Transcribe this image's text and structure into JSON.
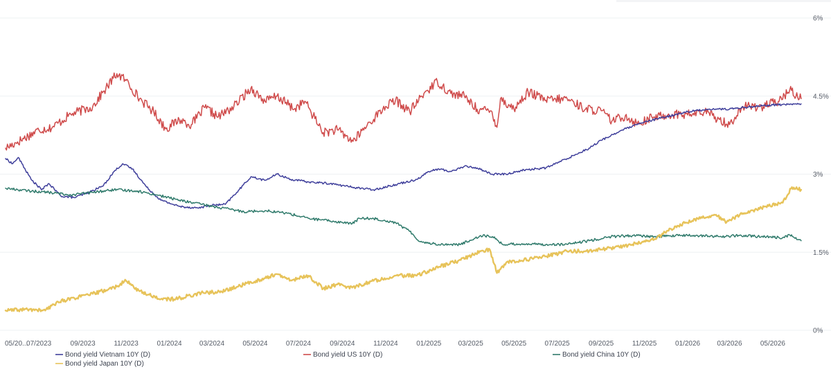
{
  "chart_data": {
    "type": "line",
    "title": "",
    "xlabel": "",
    "ylabel": "",
    "ylim": [
      0,
      6
    ],
    "y_axis_position": "right",
    "y_ticks": [
      "0%",
      "1.5%",
      "3%",
      "4.5%",
      "6%"
    ],
    "y_tick_values": [
      0,
      1.5,
      3,
      4.5,
      6
    ],
    "x_range": [
      "2023-05-15",
      "2026-06-15"
    ],
    "x_ticks": [
      "05/20...",
      "07/2023",
      "09/2023",
      "11/2023",
      "01/2024",
      "03/2024",
      "05/2024",
      "07/2024",
      "09/2024",
      "11/2024",
      "01/2025",
      "03/2025",
      "05/2025",
      "07/2025",
      "09/2025",
      "11/2025",
      "01/2026",
      "03/2026",
      "05/2026"
    ],
    "x_tick_dates": [
      "2023-05-15",
      "2023-07-01",
      "2023-09-01",
      "2023-11-01",
      "2024-01-01",
      "2024-03-01",
      "2024-05-01",
      "2024-07-01",
      "2024-09-01",
      "2024-11-01",
      "2025-01-01",
      "2025-03-01",
      "2025-05-01",
      "2025-07-01",
      "2025-09-01",
      "2025-11-01",
      "2026-01-01",
      "2026-03-01",
      "2026-05-01"
    ],
    "grid": "horizontal",
    "legend_position": "bottom",
    "series": [
      {
        "name": "Bond yield US 10Y (D)",
        "color": "#cf4b4b",
        "points": [
          [
            "2023-05-15",
            3.5
          ],
          [
            "2023-06-01",
            3.62
          ],
          [
            "2023-07-01",
            3.85
          ],
          [
            "2023-07-20",
            3.9
          ],
          [
            "2023-08-15",
            4.15
          ],
          [
            "2023-09-15",
            4.3
          ],
          [
            "2023-10-01",
            4.6
          ],
          [
            "2023-10-19",
            4.93
          ],
          [
            "2023-11-01",
            4.8
          ],
          [
            "2023-11-20",
            4.45
          ],
          [
            "2023-12-10",
            4.2
          ],
          [
            "2023-12-27",
            3.87
          ],
          [
            "2024-01-15",
            4.05
          ],
          [
            "2024-02-01",
            3.95
          ],
          [
            "2024-02-20",
            4.28
          ],
          [
            "2024-03-10",
            4.1
          ],
          [
            "2024-04-01",
            4.3
          ],
          [
            "2024-04-25",
            4.65
          ],
          [
            "2024-05-15",
            4.4
          ],
          [
            "2024-06-01",
            4.5
          ],
          [
            "2024-06-25",
            4.25
          ],
          [
            "2024-07-10",
            4.4
          ],
          [
            "2024-08-05",
            3.8
          ],
          [
            "2024-08-25",
            3.85
          ],
          [
            "2024-09-16",
            3.63
          ],
          [
            "2024-10-10",
            4.0
          ],
          [
            "2024-11-01",
            4.3
          ],
          [
            "2024-11-15",
            4.42
          ],
          [
            "2024-12-05",
            4.2
          ],
          [
            "2024-12-25",
            4.55
          ],
          [
            "2025-01-13",
            4.78
          ],
          [
            "2025-02-01",
            4.55
          ],
          [
            "2025-02-20",
            4.5
          ],
          [
            "2025-03-10",
            4.25
          ],
          [
            "2025-03-31",
            4.2
          ],
          [
            "2025-04-07",
            3.9
          ],
          [
            "2025-04-12",
            4.45
          ],
          [
            "2025-05-01",
            4.25
          ],
          [
            "2025-05-21",
            4.58
          ],
          [
            "2025-06-15",
            4.42
          ],
          [
            "2025-07-15",
            4.45
          ],
          [
            "2025-08-10",
            4.25
          ],
          [
            "2025-09-01",
            4.22
          ],
          [
            "2025-09-16",
            4.02
          ],
          [
            "2025-10-05",
            4.12
          ],
          [
            "2025-10-22",
            3.97
          ],
          [
            "2025-11-15",
            4.1
          ],
          [
            "2025-12-10",
            4.15
          ],
          [
            "2026-01-05",
            4.15
          ],
          [
            "2026-01-25",
            4.2
          ],
          [
            "2026-02-15",
            4.05
          ],
          [
            "2026-03-01",
            3.95
          ],
          [
            "2026-03-20",
            4.3
          ],
          [
            "2026-04-15",
            4.3
          ],
          [
            "2026-05-10",
            4.4
          ],
          [
            "2026-05-25",
            4.62
          ],
          [
            "2026-06-10",
            4.45
          ]
        ]
      },
      {
        "name": "Bond yield Vietnam 10Y (D)",
        "color": "#3f3f9b",
        "points": [
          [
            "2023-05-15",
            3.3
          ],
          [
            "2023-05-25",
            3.2
          ],
          [
            "2023-06-02",
            3.32
          ],
          [
            "2023-06-20",
            2.9
          ],
          [
            "2023-07-05",
            2.7
          ],
          [
            "2023-07-15",
            2.82
          ],
          [
            "2023-08-01",
            2.58
          ],
          [
            "2023-08-20",
            2.55
          ],
          [
            "2023-09-10",
            2.65
          ],
          [
            "2023-09-30",
            2.78
          ],
          [
            "2023-10-15",
            3.05
          ],
          [
            "2023-10-27",
            3.2
          ],
          [
            "2023-11-10",
            3.1
          ],
          [
            "2023-11-30",
            2.75
          ],
          [
            "2023-12-20",
            2.5
          ],
          [
            "2024-01-15",
            2.38
          ],
          [
            "2024-02-10",
            2.35
          ],
          [
            "2024-02-28",
            2.4
          ],
          [
            "2024-03-20",
            2.42
          ],
          [
            "2024-04-05",
            2.65
          ],
          [
            "2024-04-25",
            2.95
          ],
          [
            "2024-05-15",
            2.88
          ],
          [
            "2024-06-01",
            3.0
          ],
          [
            "2024-06-20",
            2.9
          ],
          [
            "2024-07-15",
            2.85
          ],
          [
            "2024-08-15",
            2.82
          ],
          [
            "2024-09-15",
            2.75
          ],
          [
            "2024-10-15",
            2.7
          ],
          [
            "2024-11-15",
            2.8
          ],
          [
            "2024-12-15",
            2.9
          ],
          [
            "2025-01-01",
            3.05
          ],
          [
            "2025-01-15",
            3.1
          ],
          [
            "2025-02-01",
            3.05
          ],
          [
            "2025-02-20",
            3.15
          ],
          [
            "2025-03-10",
            3.12
          ],
          [
            "2025-03-31",
            3.0
          ],
          [
            "2025-04-20",
            3.0
          ],
          [
            "2025-05-15",
            3.08
          ],
          [
            "2025-06-15",
            3.12
          ],
          [
            "2025-07-15",
            3.3
          ],
          [
            "2025-08-15",
            3.5
          ],
          [
            "2025-09-01",
            3.65
          ],
          [
            "2025-10-01",
            3.85
          ],
          [
            "2025-11-01",
            4.0
          ],
          [
            "2025-12-01",
            4.1
          ],
          [
            "2026-01-01",
            4.2
          ],
          [
            "2026-02-01",
            4.25
          ],
          [
            "2026-03-01",
            4.25
          ],
          [
            "2026-04-01",
            4.3
          ],
          [
            "2026-05-01",
            4.33
          ],
          [
            "2026-06-10",
            4.35
          ]
        ]
      },
      {
        "name": "Bond yield China 10Y (D)",
        "color": "#2f7a6b",
        "points": [
          [
            "2023-05-15",
            2.73
          ],
          [
            "2023-06-15",
            2.68
          ],
          [
            "2023-07-15",
            2.65
          ],
          [
            "2023-08-15",
            2.6
          ],
          [
            "2023-09-15",
            2.65
          ],
          [
            "2023-10-15",
            2.7
          ],
          [
            "2023-11-15",
            2.68
          ],
          [
            "2023-12-15",
            2.6
          ],
          [
            "2024-01-15",
            2.5
          ],
          [
            "2024-02-15",
            2.42
          ],
          [
            "2024-03-15",
            2.35
          ],
          [
            "2024-04-15",
            2.28
          ],
          [
            "2024-05-15",
            2.3
          ],
          [
            "2024-06-15",
            2.25
          ],
          [
            "2024-07-15",
            2.15
          ],
          [
            "2024-08-15",
            2.1
          ],
          [
            "2024-09-15",
            2.05
          ],
          [
            "2024-09-25",
            2.15
          ],
          [
            "2024-10-15",
            2.15
          ],
          [
            "2024-11-15",
            2.07
          ],
          [
            "2024-12-05",
            1.9
          ],
          [
            "2024-12-20",
            1.7
          ],
          [
            "2025-01-15",
            1.65
          ],
          [
            "2025-02-15",
            1.65
          ],
          [
            "2025-03-15",
            1.82
          ],
          [
            "2025-04-01",
            1.8
          ],
          [
            "2025-04-15",
            1.65
          ],
          [
            "2025-05-15",
            1.66
          ],
          [
            "2025-06-15",
            1.65
          ],
          [
            "2025-07-15",
            1.65
          ],
          [
            "2025-08-15",
            1.72
          ],
          [
            "2025-09-15",
            1.8
          ],
          [
            "2025-10-15",
            1.82
          ],
          [
            "2025-11-15",
            1.8
          ],
          [
            "2025-12-15",
            1.82
          ],
          [
            "2026-01-15",
            1.82
          ],
          [
            "2026-02-15",
            1.8
          ],
          [
            "2026-03-15",
            1.82
          ],
          [
            "2026-04-15",
            1.8
          ],
          [
            "2026-05-15",
            1.78
          ],
          [
            "2026-05-25",
            1.83
          ],
          [
            "2026-06-10",
            1.72
          ]
        ]
      },
      {
        "name": "Bond yield Japan 10Y (D)",
        "color": "#e7c35a",
        "points": [
          [
            "2023-05-15",
            0.38
          ],
          [
            "2023-06-15",
            0.4
          ],
          [
            "2023-07-10",
            0.38
          ],
          [
            "2023-07-28",
            0.55
          ],
          [
            "2023-08-20",
            0.62
          ],
          [
            "2023-09-15",
            0.7
          ],
          [
            "2023-10-15",
            0.82
          ],
          [
            "2023-11-01",
            0.95
          ],
          [
            "2023-11-20",
            0.75
          ],
          [
            "2023-12-20",
            0.6
          ],
          [
            "2024-01-10",
            0.6
          ],
          [
            "2024-02-15",
            0.72
          ],
          [
            "2024-03-15",
            0.74
          ],
          [
            "2024-04-15",
            0.88
          ],
          [
            "2024-05-15",
            1.0
          ],
          [
            "2024-05-30",
            1.08
          ],
          [
            "2024-06-20",
            0.96
          ],
          [
            "2024-07-15",
            1.05
          ],
          [
            "2024-08-05",
            0.8
          ],
          [
            "2024-08-25",
            0.88
          ],
          [
            "2024-09-15",
            0.82
          ],
          [
            "2024-10-15",
            0.95
          ],
          [
            "2024-11-15",
            1.05
          ],
          [
            "2024-12-15",
            1.05
          ],
          [
            "2025-01-15",
            1.22
          ],
          [
            "2025-02-15",
            1.35
          ],
          [
            "2025-03-15",
            1.52
          ],
          [
            "2025-03-28",
            1.55
          ],
          [
            "2025-04-07",
            1.1
          ],
          [
            "2025-04-20",
            1.3
          ],
          [
            "2025-05-15",
            1.35
          ],
          [
            "2025-06-15",
            1.42
          ],
          [
            "2025-07-15",
            1.52
          ],
          [
            "2025-08-15",
            1.52
          ],
          [
            "2025-09-15",
            1.58
          ],
          [
            "2025-10-15",
            1.65
          ],
          [
            "2025-11-15",
            1.75
          ],
          [
            "2025-12-15",
            2.0
          ],
          [
            "2026-01-15",
            2.15
          ],
          [
            "2026-02-10",
            2.22
          ],
          [
            "2026-02-25",
            2.08
          ],
          [
            "2026-03-20",
            2.25
          ],
          [
            "2026-04-15",
            2.35
          ],
          [
            "2026-05-15",
            2.45
          ],
          [
            "2026-05-28",
            2.75
          ],
          [
            "2026-06-10",
            2.7
          ]
        ]
      }
    ]
  }
}
